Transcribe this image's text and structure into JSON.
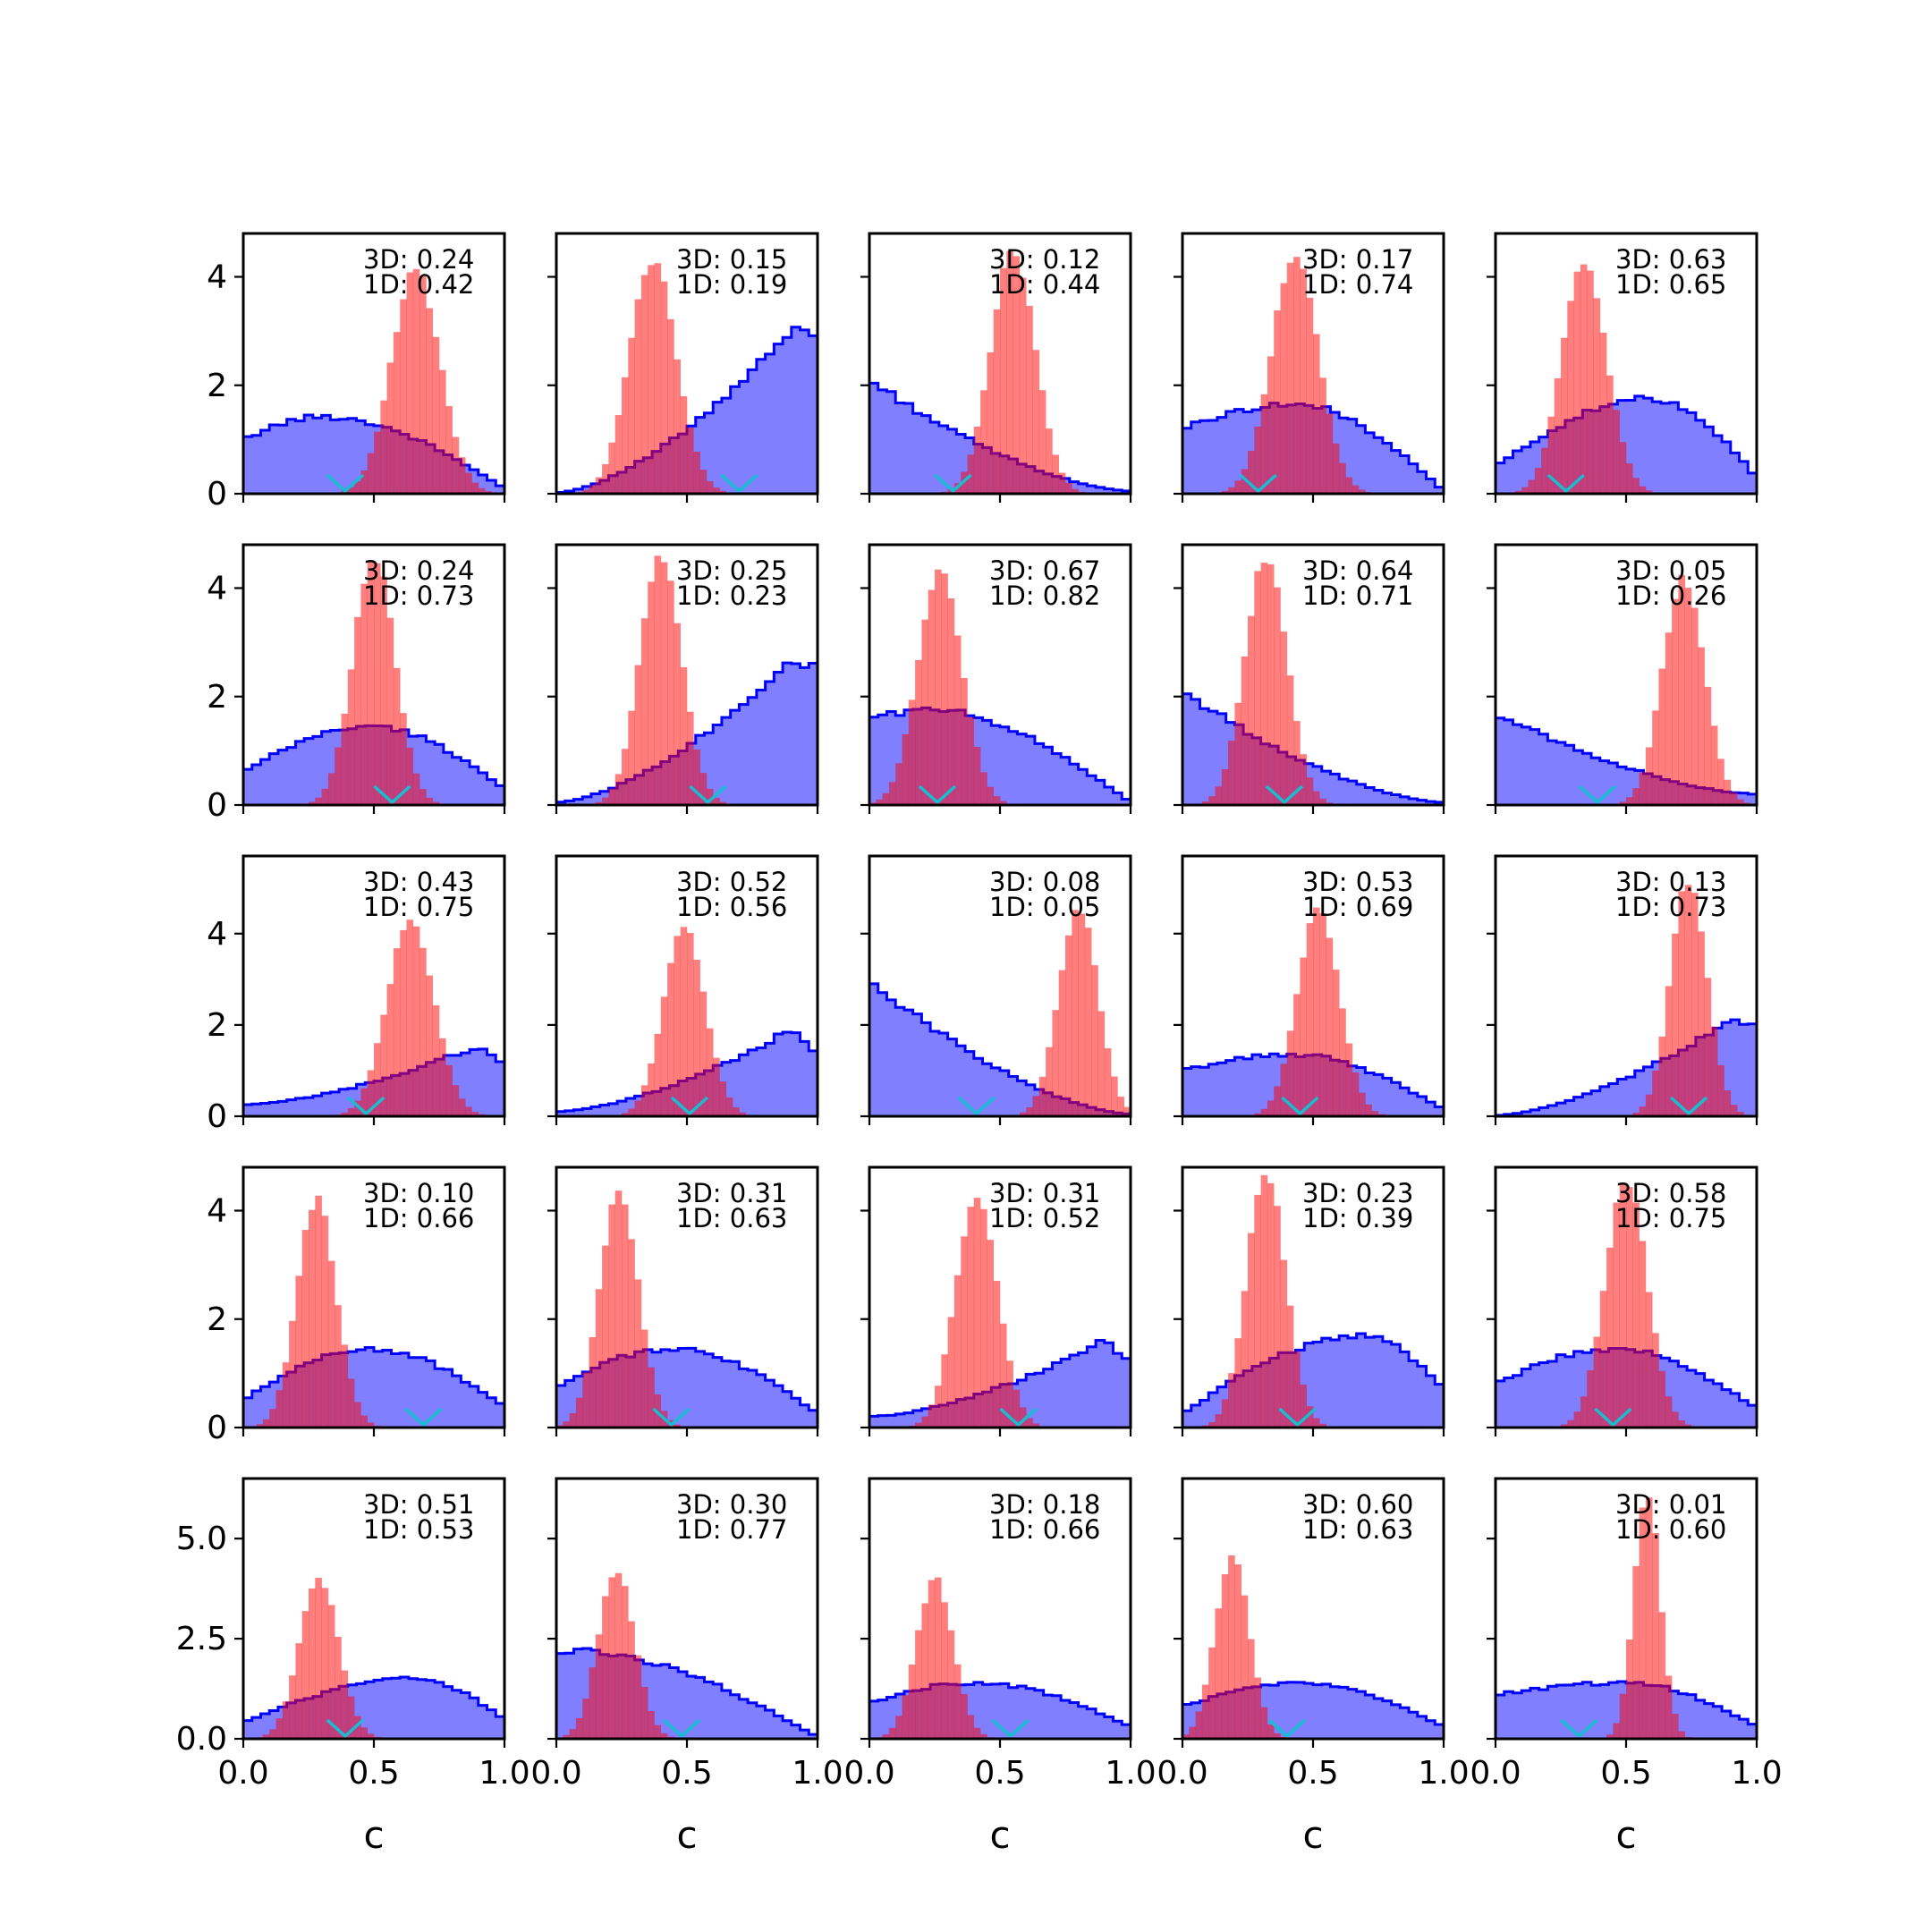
{
  "chart_data": {
    "type": "histogram-grid",
    "rows": 5,
    "cols": 5,
    "xlabel": "c",
    "xlim": [
      0,
      1
    ],
    "x_ticks": [
      "0.0",
      "0.5",
      "1.0"
    ],
    "row_ylim": [
      [
        0,
        4.8
      ],
      [
        0,
        4.8
      ],
      [
        0,
        5.7
      ],
      [
        0,
        4.8
      ],
      [
        0,
        6.5
      ]
    ],
    "row_y_ticks": [
      {
        "values": [
          0,
          2,
          4
        ],
        "labels": [
          "0",
          "2",
          "4"
        ]
      },
      {
        "values": [
          0,
          2,
          4
        ],
        "labels": [
          "0",
          "2",
          "4"
        ]
      },
      {
        "values": [
          0,
          2,
          4
        ],
        "labels": [
          "0",
          "2",
          "4"
        ]
      },
      {
        "values": [
          0,
          2,
          4
        ],
        "labels": [
          "0",
          "2",
          "4"
        ]
      },
      {
        "values": [
          0,
          2.5,
          5
        ],
        "labels": [
          "0.0",
          "2.5",
          "5.0"
        ]
      }
    ],
    "series_colors": {
      "blue": "#0000ff",
      "red": "#ff0000",
      "marker": "#17becf"
    },
    "panels": [
      {
        "label3d": "3D: 0.24",
        "label1d": "1D: 0.42",
        "marker": 0.39,
        "blue": {
          "shape": "hump",
          "left": 1.0,
          "peak": 1.42,
          "peak_at": 0.3,
          "right": 0.1
        },
        "red": {
          "mu": 0.66,
          "sd": 0.093,
          "max": 4.1
        }
      },
      {
        "label3d": "3D: 0.15",
        "label1d": "1D: 0.19",
        "marker": 0.7,
        "blue": {
          "shape": "rise",
          "left": 0.02,
          "peak": 3.0,
          "right": 3.0
        },
        "red": {
          "mu": 0.37,
          "sd": 0.09,
          "max": 4.3
        }
      },
      {
        "label3d": "3D: 0.12",
        "label1d": "1D: 0.44",
        "marker": 0.32,
        "blue": {
          "shape": "decay",
          "left": 2.1,
          "right": 0.05
        },
        "red": {
          "mu": 0.55,
          "sd": 0.085,
          "max": 4.5
        }
      },
      {
        "label3d": "3D: 0.17",
        "label1d": "1D: 0.74",
        "marker": 0.29,
        "blue": {
          "shape": "hump",
          "left": 1.2,
          "peak": 1.65,
          "peak_at": 0.42,
          "right": 0.05
        },
        "red": {
          "mu": 0.43,
          "sd": 0.09,
          "max": 4.4
        }
      },
      {
        "label3d": "3D: 0.63",
        "label1d": "1D: 0.65",
        "marker": 0.27,
        "blue": {
          "shape": "hump",
          "left": 0.5,
          "peak": 1.75,
          "peak_at": 0.6,
          "right": 0.3
        },
        "red": {
          "mu": 0.34,
          "sd": 0.085,
          "max": 4.3
        }
      },
      {
        "label3d": "3D: 0.24",
        "label1d": "1D: 0.73",
        "marker": 0.57,
        "blue": {
          "shape": "hump",
          "left": 0.6,
          "peak": 1.45,
          "peak_at": 0.48,
          "right": 0.3
        },
        "red": {
          "mu": 0.5,
          "sd": 0.08,
          "max": 4.6
        }
      },
      {
        "label3d": "3D: 0.25",
        "label1d": "1D: 0.23",
        "marker": 0.58,
        "blue": {
          "shape": "rise",
          "left": 0.05,
          "peak": 2.7,
          "right": 2.5
        },
        "red": {
          "mu": 0.4,
          "sd": 0.08,
          "max": 4.6
        }
      },
      {
        "label3d": "3D: 0.67",
        "label1d": "1D: 0.82",
        "marker": 0.26,
        "blue": {
          "shape": "hump",
          "left": 1.6,
          "peak": 1.75,
          "peak_at": 0.22,
          "right": 0.05
        },
        "red": {
          "mu": 0.27,
          "sd": 0.085,
          "max": 4.3
        }
      },
      {
        "label3d": "3D: 0.64",
        "label1d": "1D: 0.71",
        "marker": 0.39,
        "blue": {
          "shape": "decay",
          "left": 2.1,
          "right": 0.05
        },
        "red": {
          "mu": 0.32,
          "sd": 0.08,
          "max": 4.6
        }
      },
      {
        "label3d": "3D: 0.05",
        "label1d": "1D: 0.26",
        "marker": 0.39,
        "blue": {
          "shape": "decay",
          "left": 1.7,
          "right": 0.2
        },
        "red": {
          "mu": 0.72,
          "sd": 0.08,
          "max": 4.2
        }
      },
      {
        "label3d": "3D: 0.43",
        "label1d": "1D: 0.75",
        "marker": 0.47,
        "blue": {
          "shape": "rise",
          "left": 0.25,
          "peak": 1.55,
          "right": 1.1
        },
        "red": {
          "mu": 0.64,
          "sd": 0.09,
          "max": 4.3
        }
      },
      {
        "label3d": "3D: 0.52",
        "label1d": "1D: 0.56",
        "marker": 0.51,
        "blue": {
          "shape": "rise",
          "left": 0.1,
          "peak": 1.9,
          "right": 1.3
        },
        "red": {
          "mu": 0.49,
          "sd": 0.08,
          "max": 4.1
        }
      },
      {
        "label3d": "3D: 0.08",
        "label1d": "1D: 0.05",
        "marker": 0.41,
        "blue": {
          "shape": "decay",
          "left": 3.0,
          "right": 0.05
        },
        "red": {
          "mu": 0.8,
          "sd": 0.075,
          "max": 4.6
        }
      },
      {
        "label3d": "3D: 0.53",
        "label1d": "1D: 0.69",
        "marker": 0.45,
        "blue": {
          "shape": "hump",
          "left": 1.0,
          "peak": 1.35,
          "peak_at": 0.42,
          "right": 0.15
        },
        "red": {
          "mu": 0.52,
          "sd": 0.08,
          "max": 4.6
        }
      },
      {
        "label3d": "3D: 0.13",
        "label1d": "1D: 0.73",
        "marker": 0.74,
        "blue": {
          "shape": "rise",
          "left": 0.02,
          "peak": 2.1,
          "right": 2.05
        },
        "red": {
          "mu": 0.74,
          "sd": 0.07,
          "max": 5.2
        }
      },
      {
        "label3d": "3D: 0.10",
        "label1d": "1D: 0.66",
        "marker": 0.69,
        "blue": {
          "shape": "hump",
          "left": 0.5,
          "peak": 1.45,
          "peak_at": 0.48,
          "right": 0.4
        },
        "red": {
          "mu": 0.28,
          "sd": 0.075,
          "max": 4.2
        }
      },
      {
        "label3d": "3D: 0.31",
        "label1d": "1D: 0.63",
        "marker": 0.44,
        "blue": {
          "shape": "hump",
          "left": 0.75,
          "peak": 1.45,
          "peak_at": 0.45,
          "right": 0.25
        },
        "red": {
          "mu": 0.24,
          "sd": 0.075,
          "max": 4.3
        }
      },
      {
        "label3d": "3D: 0.31",
        "label1d": "1D: 0.52",
        "marker": 0.57,
        "blue": {
          "shape": "rise",
          "left": 0.2,
          "peak": 1.6,
          "right": 1.2
        },
        "red": {
          "mu": 0.41,
          "sd": 0.08,
          "max": 4.3
        }
      },
      {
        "label3d": "3D: 0.23",
        "label1d": "1D: 0.39",
        "marker": 0.44,
        "blue": {
          "shape": "hump",
          "left": 0.25,
          "peak": 1.7,
          "peak_at": 0.7,
          "right": 0.7
        },
        "red": {
          "mu": 0.32,
          "sd": 0.075,
          "max": 4.7
        }
      },
      {
        "label3d": "3D: 0.58",
        "label1d": "1D: 0.75",
        "marker": 0.45,
        "blue": {
          "shape": "hump",
          "left": 0.8,
          "peak": 1.45,
          "peak_at": 0.45,
          "right": 0.35
        },
        "red": {
          "mu": 0.5,
          "sd": 0.08,
          "max": 4.6
        }
      },
      {
        "label3d": "3D: 0.51",
        "label1d": "1D: 0.53",
        "marker": 0.39,
        "blue": {
          "shape": "hump",
          "left": 0.4,
          "peak": 1.5,
          "peak_at": 0.65,
          "right": 0.5
        },
        "red": {
          "mu": 0.29,
          "sd": 0.075,
          "max": 4.0
        }
      },
      {
        "label3d": "3D: 0.30",
        "label1d": "1D: 0.77",
        "marker": 0.48,
        "blue": {
          "shape": "hump",
          "left": 2.2,
          "peak": 2.2,
          "peak_at": 0.05,
          "right": 0.05
        },
        "red": {
          "mu": 0.23,
          "sd": 0.07,
          "max": 4.2
        }
      },
      {
        "label3d": "3D: 0.18",
        "label1d": "1D: 0.66",
        "marker": 0.54,
        "blue": {
          "shape": "hump",
          "left": 0.9,
          "peak": 1.4,
          "peak_at": 0.4,
          "right": 0.3
        },
        "red": {
          "mu": 0.25,
          "sd": 0.07,
          "max": 4.0
        }
      },
      {
        "label3d": "3D: 0.60",
        "label1d": "1D: 0.63",
        "marker": 0.4,
        "blue": {
          "shape": "hump",
          "left": 0.8,
          "peak": 1.4,
          "peak_at": 0.45,
          "right": 0.3
        },
        "red": {
          "mu": 0.19,
          "sd": 0.065,
          "max": 4.6
        }
      },
      {
        "label3d": "3D: 0.01",
        "label1d": "1D: 0.60",
        "marker": 0.32,
        "blue": {
          "shape": "hump",
          "left": 1.1,
          "peak": 1.4,
          "peak_at": 0.5,
          "right": 0.3
        },
        "red": {
          "mu": 0.58,
          "sd": 0.05,
          "max": 6.2
        }
      }
    ]
  }
}
